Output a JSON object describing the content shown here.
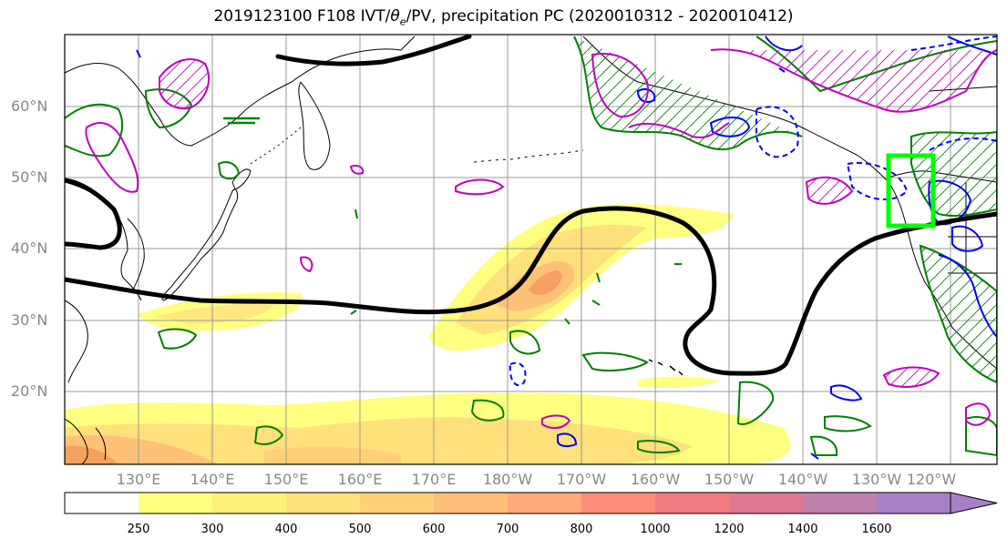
{
  "title": {
    "pre": "2019123100 F108 IVT/",
    "theta": "θ",
    "theta_sub": "e",
    "post": "/PV, precipitation PC (2020010312 - 2020010412)"
  },
  "lat_labels": [
    "60°N",
    "50°N",
    "40°N",
    "30°N",
    "20°N"
  ],
  "lon_labels": [
    "130°E",
    "140°E",
    "150°E",
    "160°E",
    "170°E",
    "180°W",
    "170°W",
    "160°W",
    "150°W",
    "140°W",
    "130°W",
    "120°W"
  ],
  "colorbar": {
    "levels": [
      "250",
      "300",
      "400",
      "500",
      "600",
      "700",
      "800",
      "1000",
      "1200",
      "1400",
      "1600"
    ],
    "colors": [
      "#ffff80",
      "#fff07a",
      "#ffe07a",
      "#ffd078",
      "#ffbf78",
      "#ffa878",
      "#ff8c78",
      "#f27a80",
      "#e07890",
      "#c080b0",
      "#a880c8"
    ]
  },
  "colors": {
    "ivt_fill": "#ffd24d",
    "ivt_core": "#f5a050",
    "pv_contour": "#000000",
    "precip_pos": "#008000",
    "precip_neg": "#0000ff",
    "theta_contour": "#c000c0",
    "highlight_box": "#00ff00",
    "coast": "#000000",
    "grid": "#999999"
  }
}
